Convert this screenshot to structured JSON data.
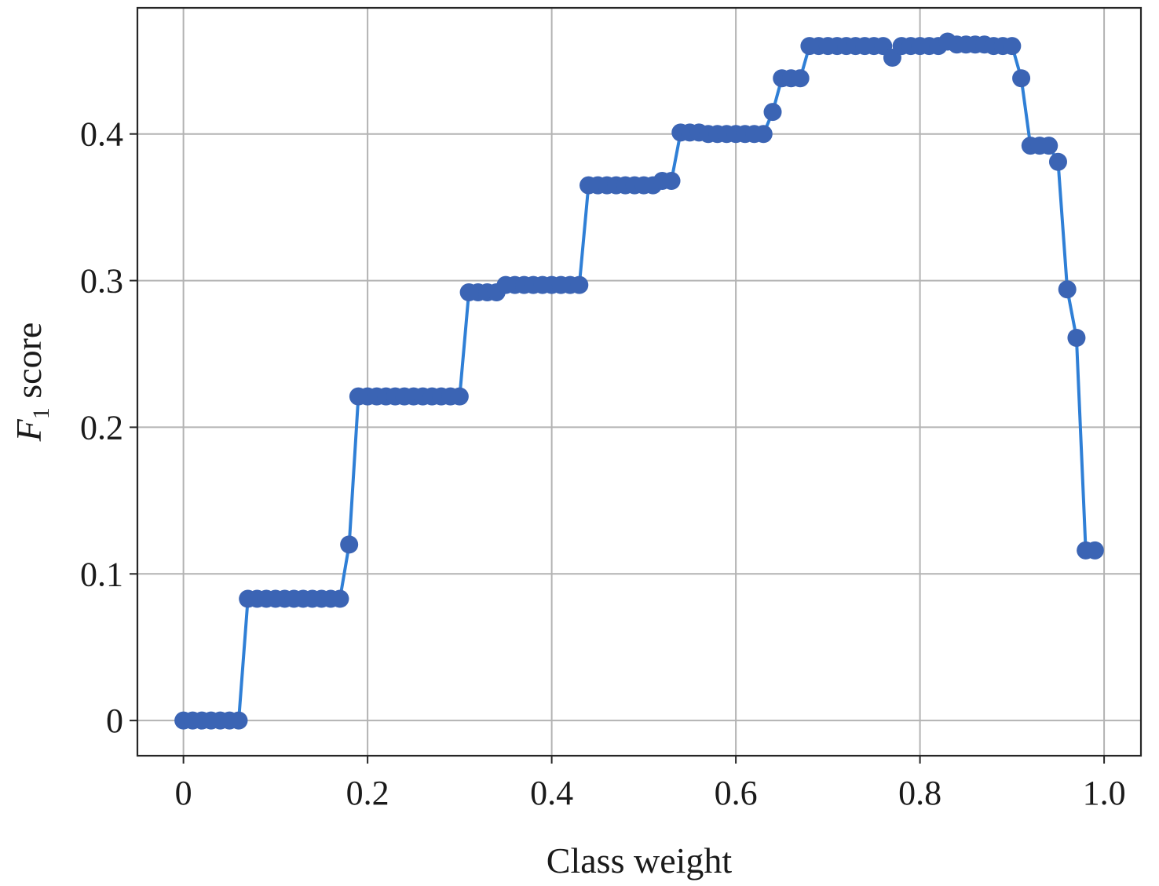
{
  "chart_data": {
    "type": "line",
    "xlabel": "Class weight",
    "ylabel": {
      "symbol": "F",
      "subscript": "1",
      "rest": " score"
    },
    "xlim": [
      -0.05,
      1.04
    ],
    "ylim": [
      -0.024,
      0.486
    ],
    "grid": true,
    "xticks": [
      0,
      0.2,
      0.4,
      0.6,
      0.8,
      1.0
    ],
    "xtick_labels": [
      "0",
      "0.2",
      "0.4",
      "0.6",
      "0.8",
      "1.0"
    ],
    "yticks": [
      0,
      0.1,
      0.2,
      0.3,
      0.4
    ],
    "ytick_labels": [
      "0",
      "0.1",
      "0.2",
      "0.3",
      "0.4"
    ],
    "colors": {
      "line": "#2f7fd6",
      "marker": "#3b64b4"
    },
    "series": [
      {
        "x": [
          0.0,
          0.01,
          0.02,
          0.03,
          0.04,
          0.05,
          0.06,
          0.07,
          0.08,
          0.09,
          0.1,
          0.11,
          0.12,
          0.13,
          0.14,
          0.15,
          0.16,
          0.17,
          0.18,
          0.19,
          0.2,
          0.21,
          0.22,
          0.23,
          0.24,
          0.25,
          0.26,
          0.27,
          0.28,
          0.29,
          0.3,
          0.31,
          0.32,
          0.33,
          0.34,
          0.35,
          0.36,
          0.37,
          0.38,
          0.39,
          0.4,
          0.41,
          0.42,
          0.43,
          0.44,
          0.45,
          0.46,
          0.47,
          0.48,
          0.49,
          0.5,
          0.51,
          0.52,
          0.53,
          0.54,
          0.55,
          0.56,
          0.57,
          0.58,
          0.59,
          0.6,
          0.61,
          0.62,
          0.63,
          0.64,
          0.65,
          0.66,
          0.67,
          0.68,
          0.69,
          0.7,
          0.71,
          0.72,
          0.73,
          0.74,
          0.75,
          0.76,
          0.77,
          0.78,
          0.79,
          0.8,
          0.81,
          0.82,
          0.83,
          0.84,
          0.85,
          0.86,
          0.87,
          0.88,
          0.89,
          0.9,
          0.91,
          0.92,
          0.93,
          0.94,
          0.95,
          0.96,
          0.97,
          0.98,
          0.99
        ],
        "y": [
          0.0,
          0.0,
          0.0,
          0.0,
          0.0,
          0.0,
          0.0,
          0.083,
          0.083,
          0.083,
          0.083,
          0.083,
          0.083,
          0.083,
          0.083,
          0.083,
          0.083,
          0.083,
          0.12,
          0.221,
          0.221,
          0.221,
          0.221,
          0.221,
          0.221,
          0.221,
          0.221,
          0.221,
          0.221,
          0.221,
          0.221,
          0.292,
          0.292,
          0.292,
          0.292,
          0.297,
          0.297,
          0.297,
          0.297,
          0.297,
          0.297,
          0.297,
          0.297,
          0.297,
          0.365,
          0.365,
          0.365,
          0.365,
          0.365,
          0.365,
          0.365,
          0.365,
          0.368,
          0.368,
          0.401,
          0.401,
          0.401,
          0.4,
          0.4,
          0.4,
          0.4,
          0.4,
          0.4,
          0.4,
          0.415,
          0.438,
          0.438,
          0.438,
          0.46,
          0.46,
          0.46,
          0.46,
          0.46,
          0.46,
          0.46,
          0.46,
          0.46,
          0.452,
          0.46,
          0.46,
          0.46,
          0.46,
          0.46,
          0.463,
          0.461,
          0.461,
          0.461,
          0.461,
          0.46,
          0.46,
          0.46,
          0.438,
          0.392,
          0.392,
          0.392,
          0.381,
          0.294,
          0.261,
          0.116,
          0.116
        ]
      }
    ]
  }
}
